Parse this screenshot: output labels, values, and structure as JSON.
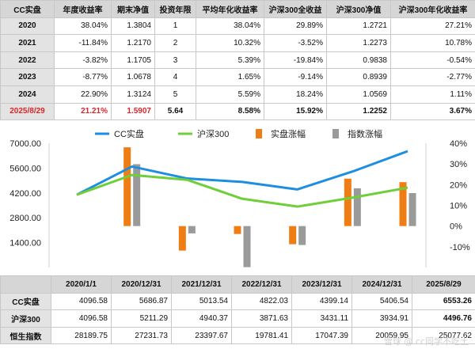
{
  "summary_table": {
    "headers": [
      "CC实盘",
      "年度收益率",
      "期末净值",
      "投资年限",
      "平均年化收益率",
      "沪深300全收益",
      "沪深300净值",
      "沪深300年化收益率"
    ],
    "rows": [
      [
        "2020",
        "38.04%",
        "1.3804",
        "1",
        "38.04%",
        "29.89%",
        "1.2721",
        "27.21%"
      ],
      [
        "2021",
        "-11.84%",
        "1.2170",
        "2",
        "10.32%",
        "-3.52%",
        "1.2273",
        "10.78%"
      ],
      [
        "2022",
        "-3.82%",
        "1.1705",
        "3",
        "5.39%",
        "-19.84%",
        "0.9838",
        "-0.54%"
      ],
      [
        "2023",
        "-8.77%",
        "1.0678",
        "4",
        "1.65%",
        "-9.14%",
        "0.8939",
        "-2.77%"
      ],
      [
        "2024",
        "22.90%",
        "1.3124",
        "5",
        "5.59%",
        "18.24%",
        "1.0569",
        "1.11%"
      ],
      [
        "2025/8/29",
        "21.21%",
        "1.5907",
        "5.64",
        "8.58%",
        "15.92%",
        "1.2252",
        "3.67%"
      ]
    ]
  },
  "chart_data": {
    "type": "line",
    "categories": [
      "2020/1/1",
      "2020/12/31",
      "2021/12/31",
      "2022/12/31",
      "2023/12/31",
      "2024/12/31",
      "2025/8/29"
    ],
    "series": [
      {
        "name": "CC实盘",
        "kind": "line",
        "axis": "left",
        "color": "#1e8ee0",
        "values": [
          4096.58,
          5686.87,
          5013.54,
          4822.03,
          4399.14,
          5406.54,
          6553.26
        ]
      },
      {
        "name": "沪深300",
        "kind": "line",
        "axis": "left",
        "color": "#6fcf3a",
        "values": [
          4096.58,
          5211.29,
          4940.37,
          3871.63,
          3431.11,
          3934.91,
          4496.76
        ]
      },
      {
        "name": "实盘涨幅",
        "kind": "bar",
        "axis": "right",
        "color": "#f07d14",
        "values": [
          null,
          38.04,
          -11.84,
          -3.82,
          -8.77,
          22.9,
          21.21
        ]
      },
      {
        "name": "指数涨幅",
        "kind": "bar",
        "axis": "right",
        "color": "#9a9a9a",
        "values": [
          null,
          29.89,
          -3.52,
          -19.84,
          -9.14,
          18.24,
          15.92
        ]
      }
    ],
    "y_left": {
      "ticks": [
        "7000.00",
        "5600.00",
        "4200.00",
        "2800.00",
        "1400.00"
      ],
      "min": 0,
      "max": 7000
    },
    "y_right": {
      "ticks": [
        "40%",
        "30%",
        "20%",
        "10%",
        "0%",
        "-10%"
      ],
      "min": -20,
      "max": 40
    },
    "legend_position": "top"
  },
  "index_table": {
    "headers": [
      "",
      "2020/1/1",
      "2020/12/31",
      "2021/12/31",
      "2022/12/31",
      "2023/12/31",
      "2024/12/31",
      "2025/8/29"
    ],
    "rows": [
      [
        "CC实盘",
        "4096.58",
        "5686.87",
        "5013.54",
        "4822.03",
        "4399.14",
        "5406.54",
        "6553.26"
      ],
      [
        "沪深300",
        "4096.58",
        "5211.29",
        "4940.37",
        "3871.63",
        "3431.11",
        "3934.91",
        "4496.76"
      ],
      [
        "恒生指数",
        "28189.75",
        "27231.73",
        "23397.67",
        "19781.41",
        "17047.39",
        "20059.95",
        "25077.62"
      ]
    ]
  },
  "watermark": "雪球 @ cc同学不吃土"
}
